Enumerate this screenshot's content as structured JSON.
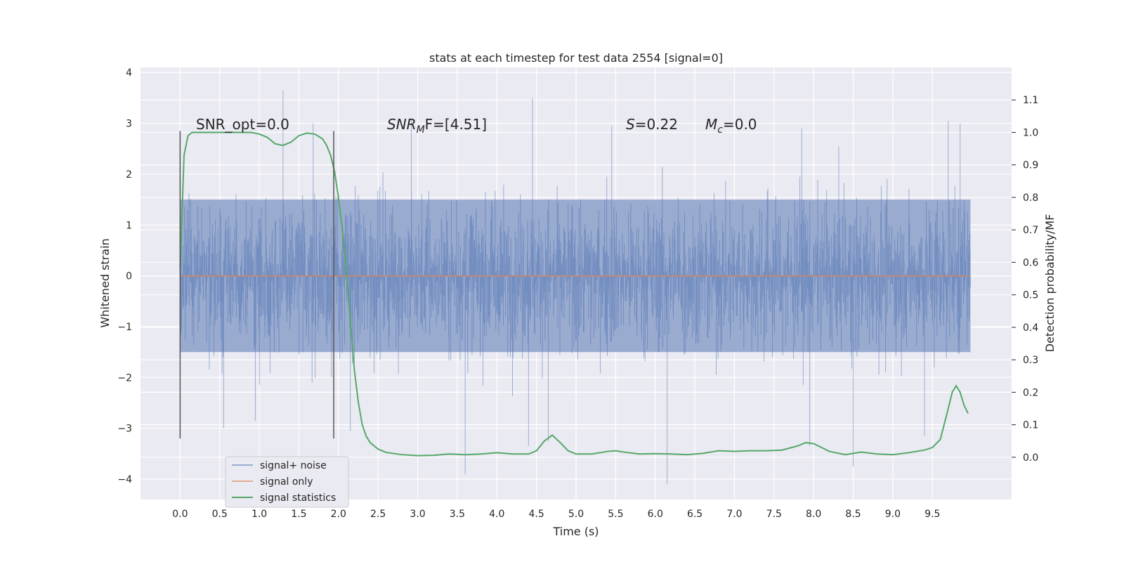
{
  "chart_data": {
    "type": "line",
    "title": "stats at each timestep for test data 2554 [signal=0]",
    "xlabel": "Time (s)",
    "ylabel": "Whitened strain",
    "y2label": "Detection probability/MF",
    "xlim": [
      -0.5,
      10.5
    ],
    "ylim": [
      -4.4,
      4.1
    ],
    "y2lim": [
      -0.13,
      1.2
    ],
    "x_ticks": [
      "0.0",
      "0.5",
      "1.0",
      "1.5",
      "2.0",
      "2.5",
      "3.0",
      "3.5",
      "4.0",
      "4.5",
      "5.0",
      "5.5",
      "6.0",
      "6.5",
      "7.0",
      "7.5",
      "8.0",
      "8.5",
      "9.0",
      "9.5"
    ],
    "y_ticks": [
      "4",
      "3",
      "2",
      "1",
      "0",
      "−1",
      "−2",
      "−3",
      "−4"
    ],
    "y2_ticks": [
      "1.1",
      "1.0",
      "0.9",
      "0.8",
      "0.7",
      "0.6",
      "0.5",
      "0.4",
      "0.3",
      "0.2",
      "0.1",
      "0.0"
    ],
    "grid": true,
    "legend_position": "lower-left",
    "colors": {
      "noise": "#4c72b0",
      "signal": "#dd8452",
      "stats": "#55a868",
      "vline": "#555555",
      "background": "#eaeaf2"
    },
    "annotations": {
      "snr_opt": "SNR_opt=0.0",
      "snr_mf_base": "SNR",
      "snr_mf_sub": "M",
      "snr_mf_rest": "F=[4.51]",
      "s_var": "S",
      "s_val": "=0.22",
      "mc_var": "M",
      "mc_sub": "c",
      "mc_val": "=0.0"
    },
    "vlines_x": [
      0.0,
      1.94
    ],
    "vline_range": [
      -3.2,
      2.85
    ],
    "series": [
      {
        "name": "signal+ noise",
        "x_range": [
          0.0,
          9.98
        ],
        "envelope_core": 1.5,
        "spikes": [
          {
            "x": 1.3,
            "y": 3.65
          },
          {
            "x": 4.45,
            "y": 3.5
          },
          {
            "x": 2.92,
            "y": 3.1
          },
          {
            "x": 1.68,
            "y": 3.0
          },
          {
            "x": 3.6,
            "y": -3.9
          },
          {
            "x": 6.15,
            "y": -4.1
          },
          {
            "x": 8.5,
            "y": -3.75
          },
          {
            "x": 4.4,
            "y": -3.35
          },
          {
            "x": 7.95,
            "y": -3.35
          },
          {
            "x": 4.65,
            "y": -3.25
          },
          {
            "x": 9.4,
            "y": -3.15
          },
          {
            "x": 2.15,
            "y": -3.05
          },
          {
            "x": 0.55,
            "y": -3.0
          },
          {
            "x": 9.7,
            "y": 3.05
          },
          {
            "x": 9.85,
            "y": 3.0
          },
          {
            "x": 5.45,
            "y": 2.95
          },
          {
            "x": 7.85,
            "y": 2.9
          },
          {
            "x": 0.95,
            "y": -2.85
          }
        ]
      },
      {
        "name": "signal only",
        "x": [
          0.0,
          9.98
        ],
        "y": [
          0.0,
          0.0
        ]
      },
      {
        "name": "signal statistics",
        "axis": "right",
        "x": [
          0.0,
          0.05,
          0.1,
          0.15,
          0.2,
          0.3,
          0.5,
          0.7,
          0.9,
          1.0,
          1.1,
          1.2,
          1.3,
          1.4,
          1.5,
          1.6,
          1.7,
          1.8,
          1.85,
          1.9,
          1.95,
          2.0,
          2.05,
          2.1,
          2.15,
          2.2,
          2.25,
          2.3,
          2.35,
          2.4,
          2.5,
          2.6,
          2.8,
          3.0,
          3.2,
          3.4,
          3.6,
          3.8,
          4.0,
          4.2,
          4.4,
          4.5,
          4.6,
          4.7,
          4.8,
          4.9,
          5.0,
          5.2,
          5.4,
          5.5,
          5.6,
          5.8,
          6.0,
          6.2,
          6.4,
          6.6,
          6.8,
          7.0,
          7.2,
          7.4,
          7.6,
          7.8,
          7.9,
          8.0,
          8.1,
          8.2,
          8.4,
          8.6,
          8.8,
          9.0,
          9.2,
          9.4,
          9.5,
          9.6,
          9.7,
          9.75,
          9.8,
          9.85,
          9.9,
          9.95
        ],
        "y": [
          0.58,
          0.93,
          0.99,
          1.0,
          1.0,
          1.0,
          1.0,
          1.0,
          1.0,
          0.995,
          0.985,
          0.965,
          0.96,
          0.97,
          0.99,
          0.998,
          0.995,
          0.98,
          0.96,
          0.93,
          0.88,
          0.8,
          0.7,
          0.57,
          0.42,
          0.27,
          0.17,
          0.1,
          0.065,
          0.045,
          0.025,
          0.015,
          0.008,
          0.005,
          0.006,
          0.01,
          0.008,
          0.01,
          0.014,
          0.01,
          0.01,
          0.02,
          0.05,
          0.068,
          0.045,
          0.02,
          0.01,
          0.01,
          0.018,
          0.02,
          0.016,
          0.01,
          0.011,
          0.01,
          0.008,
          0.012,
          0.02,
          0.018,
          0.02,
          0.02,
          0.022,
          0.035,
          0.045,
          0.042,
          0.03,
          0.018,
          0.008,
          0.016,
          0.01,
          0.008,
          0.014,
          0.022,
          0.03,
          0.055,
          0.15,
          0.2,
          0.22,
          0.2,
          0.16,
          0.135
        ]
      }
    ]
  }
}
